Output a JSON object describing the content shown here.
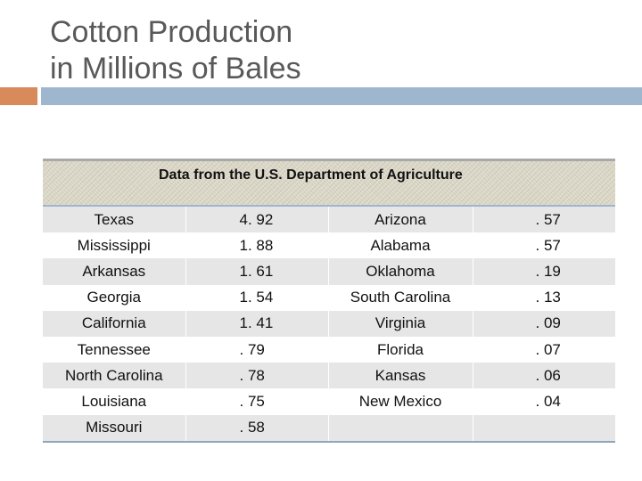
{
  "title_line1": "Cotton Production",
  "title_line2": "in Millions of Bales",
  "table": {
    "caption": "Data from the U.S. Department of Agriculture",
    "rows": [
      {
        "state1": "Texas",
        "value1": "4. 92",
        "state2": "Arizona",
        "value2": ". 57"
      },
      {
        "state1": "Mississippi",
        "value1": "1. 88",
        "state2": "Alabama",
        "value2": ". 57"
      },
      {
        "state1": "Arkansas",
        "value1": "1. 61",
        "state2": "Oklahoma",
        "value2": ". 19"
      },
      {
        "state1": "Georgia",
        "value1": "1. 54",
        "state2": "South Carolina",
        "value2": ". 13"
      },
      {
        "state1": "California",
        "value1": "1. 41",
        "state2": "Virginia",
        "value2": ". 09"
      },
      {
        "state1": "Tennessee",
        "value1": ". 79",
        "state2": "Florida",
        "value2": ". 07"
      },
      {
        "state1": "North Carolina",
        "value1": ". 78",
        "state2": "Kansas",
        "value2": ". 06"
      },
      {
        "state1": "Louisiana",
        "value1": ". 75",
        "state2": "New Mexico",
        "value2": ". 04"
      },
      {
        "state1": "Missouri",
        "value1": ". 58",
        "state2": "",
        "value2": ""
      }
    ]
  },
  "colors": {
    "accent_orange": "#d88a5a",
    "accent_blue": "#9fb7ce",
    "row_shade": "#e6e6e6"
  }
}
